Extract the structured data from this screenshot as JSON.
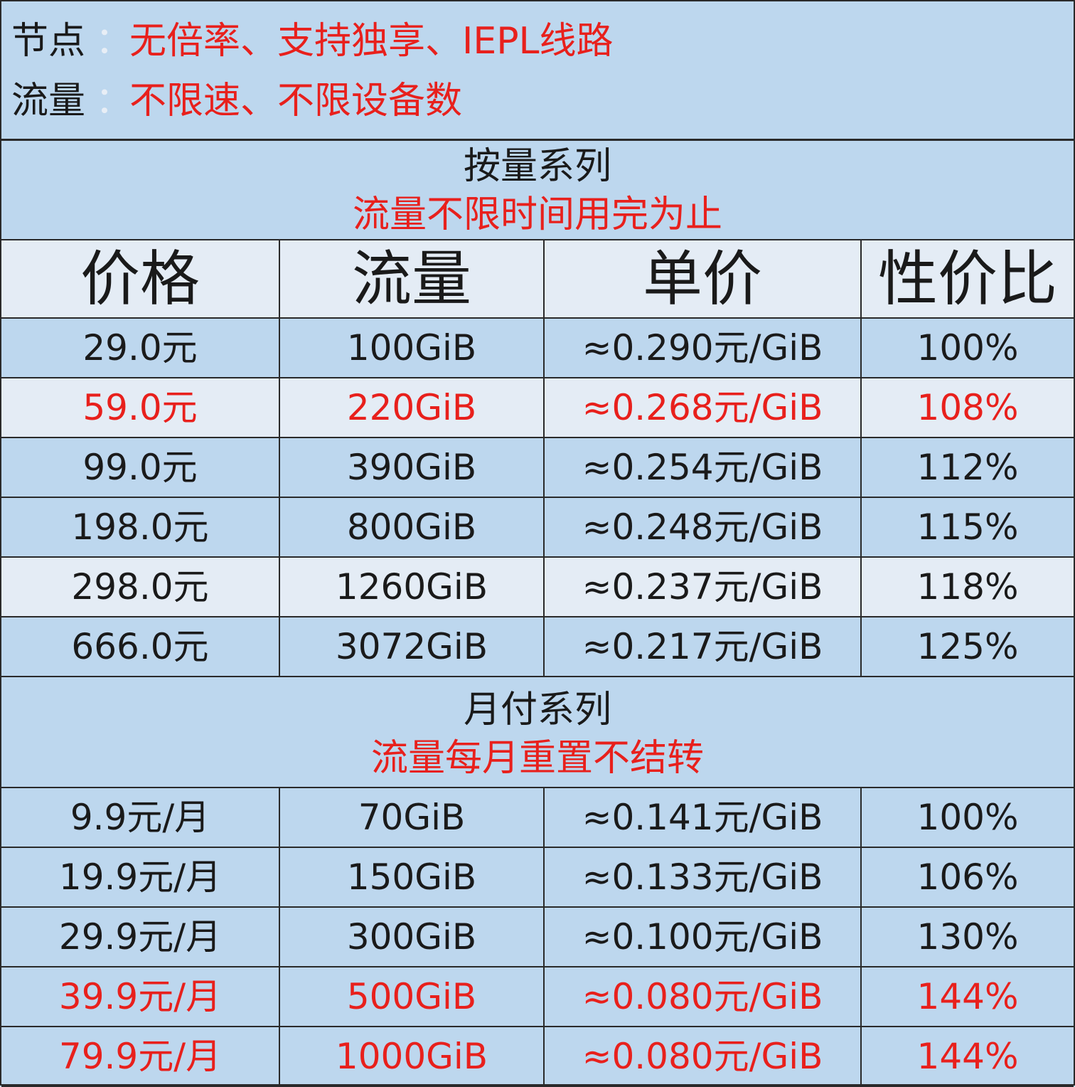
{
  "info": {
    "node_label": "节点",
    "node_sep": "：",
    "node_value": "无倍率、支持独享、IEPL线路",
    "traffic_label": "流量",
    "traffic_sep": "：",
    "traffic_value": "不限速、不限设备数"
  },
  "volume_series": {
    "title": "按量系列",
    "subtitle": "流量不限时间用完为止"
  },
  "columns": [
    "价格",
    "流量",
    "单价",
    "性价比"
  ],
  "volume_rows": [
    {
      "price": "29.0元",
      "traffic": "100GiB",
      "unit": "≈0.290元/GiB",
      "value": "100%",
      "highlight": false
    },
    {
      "price": "59.0元",
      "traffic": "220GiB",
      "unit": "≈0.268元/GiB",
      "value": "108%",
      "highlight": true
    },
    {
      "price": "99.0元",
      "traffic": "390GiB",
      "unit": "≈0.254元/GiB",
      "value": "112%",
      "highlight": false
    },
    {
      "price": "198.0元",
      "traffic": "800GiB",
      "unit": "≈0.248元/GiB",
      "value": "115%",
      "highlight": false
    },
    {
      "price": "298.0元",
      "traffic": "1260GiB",
      "unit": "≈0.237元/GiB",
      "value": "118%",
      "highlight": false
    },
    {
      "price": "666.0元",
      "traffic": "3072GiB",
      "unit": "≈0.217元/GiB",
      "value": "125%",
      "highlight": false
    }
  ],
  "monthly_series": {
    "title": "月付系列",
    "subtitle": "流量每月重置不结转"
  },
  "monthly_rows": [
    {
      "price": "9.9元/月",
      "traffic": "70GiB",
      "unit": "≈0.141元/GiB",
      "value": "100%",
      "highlight": false
    },
    {
      "price": "19.9元/月",
      "traffic": "150GiB",
      "unit": "≈0.133元/GiB",
      "value": "106%",
      "highlight": false
    },
    {
      "price": "29.9元/月",
      "traffic": "300GiB",
      "unit": "≈0.100元/GiB",
      "value": "130%",
      "highlight": false
    },
    {
      "price": "39.9元/月",
      "traffic": "500GiB",
      "unit": "≈0.080元/GiB",
      "value": "144%",
      "highlight": true
    },
    {
      "price": "79.9元/月",
      "traffic": "1000GiB",
      "unit": "≈0.080元/GiB",
      "value": "144%",
      "highlight": true
    }
  ],
  "colors": {
    "background": "#bdd7ee",
    "alt_row": "#e4ecf5",
    "highlight_text": "#e8201c",
    "border": "#2a2a2a"
  }
}
